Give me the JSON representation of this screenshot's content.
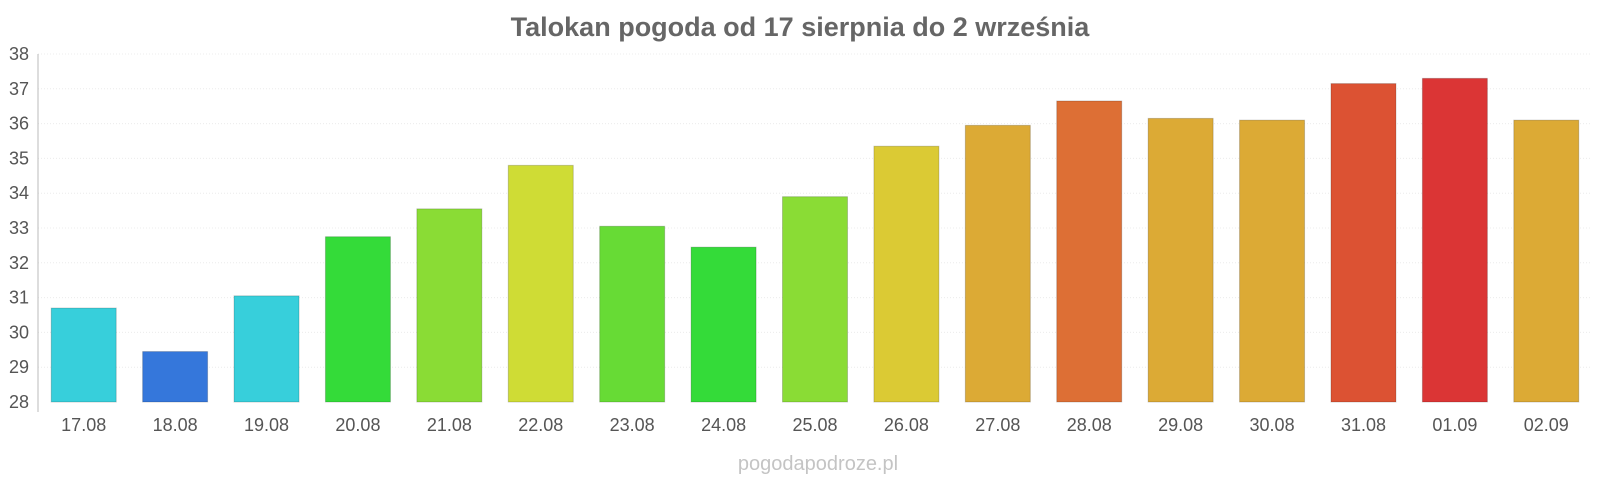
{
  "chart_data": {
    "type": "bar",
    "title": "Talokan pogoda od 17 sierpnia do 2 września",
    "xlabel": "",
    "ylabel": "",
    "ylim": [
      28,
      38
    ],
    "yticks": [
      28,
      29,
      30,
      31,
      32,
      33,
      34,
      35,
      36,
      37,
      38
    ],
    "grid": true,
    "legend": "none",
    "categories": [
      "17.08",
      "18.08",
      "19.08",
      "20.08",
      "21.08",
      "22.08",
      "23.08",
      "24.08",
      "25.08",
      "26.08",
      "27.08",
      "28.08",
      "29.08",
      "30.08",
      "31.08",
      "01.09",
      "02.09"
    ],
    "values": [
      30.7,
      29.45,
      31.05,
      32.75,
      33.55,
      34.8,
      33.05,
      32.45,
      33.9,
      35.35,
      35.95,
      36.65,
      36.15,
      36.1,
      37.15,
      37.3,
      36.1
    ],
    "colors": [
      "#37cfdb",
      "#3577db",
      "#37cfdb",
      "#34db39",
      "#8adc35",
      "#cfdc35",
      "#67db35",
      "#34db39",
      "#8adc35",
      "#dbca34",
      "#dcaa35",
      "#dd6f35",
      "#dcaa35",
      "#dcaa35",
      "#dc5233",
      "#db3535",
      "#dcaa35"
    ]
  },
  "watermark": "pogodapodroze.pl"
}
